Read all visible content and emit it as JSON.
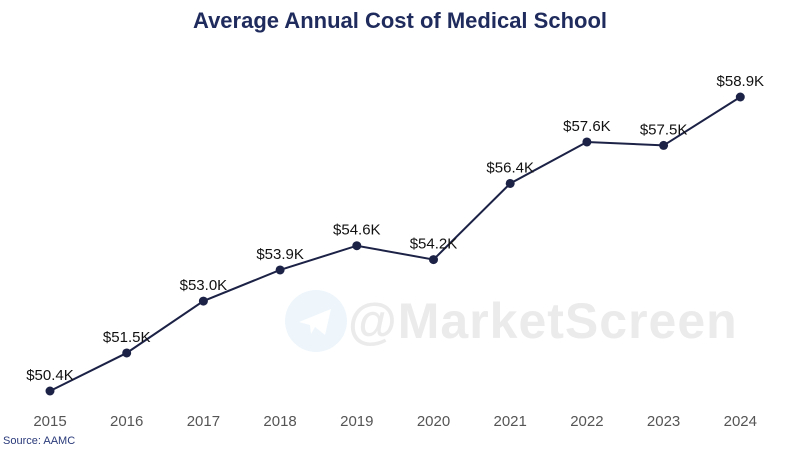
{
  "chart_data": {
    "type": "line",
    "title": "Average Annual Cost of Medical School",
    "categories": [
      "2015",
      "2016",
      "2017",
      "2018",
      "2019",
      "2020",
      "2021",
      "2022",
      "2023",
      "2024"
    ],
    "values": [
      50.4,
      51.5,
      53.0,
      53.9,
      54.6,
      54.2,
      56.4,
      57.6,
      57.5,
      58.9
    ],
    "data_labels": [
      "$50.4K",
      "$51.5K",
      "$53.0K",
      "$53.9K",
      "$54.6K",
      "$54.2K",
      "$56.4K",
      "$57.6K",
      "$57.5K",
      "$58.9K"
    ],
    "unit": "thousand USD",
    "xlabel": "",
    "ylabel": "",
    "y_axis_visible": false,
    "grid": false,
    "line_color": "#1c2246",
    "title_color": "#1f2b5c"
  },
  "source": "Source: AAMC",
  "watermark": "@MarketScreen"
}
